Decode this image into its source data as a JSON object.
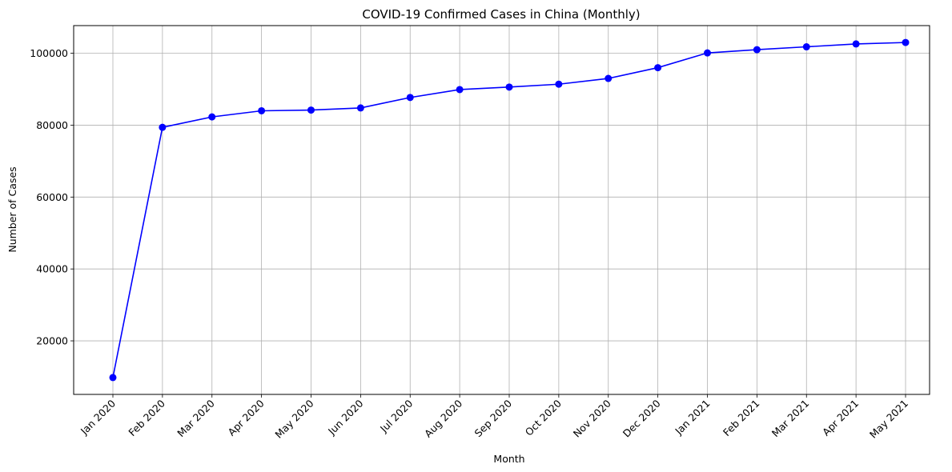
{
  "chart_data": {
    "type": "line",
    "title": "COVID-19 Confirmed Cases in China (Monthly)",
    "xlabel": "Month",
    "ylabel": "Number of Cases",
    "categories": [
      "Jan 2020",
      "Feb 2020",
      "Mar 2020",
      "Apr 2020",
      "May 2020",
      "Jun 2020",
      "Jul 2020",
      "Aug 2020",
      "Sep 2020",
      "Oct 2020",
      "Nov 2020",
      "Dec 2020",
      "Jan 2021",
      "Feb 2021",
      "Mar 2021",
      "Apr 2021",
      "May 2021"
    ],
    "series": [
      {
        "values": [
          9800,
          79400,
          82300,
          84000,
          84200,
          84800,
          87700,
          89900,
          90600,
          91400,
          93000,
          96000,
          100100,
          101000,
          101800,
          102600,
          103000
        ],
        "color": "#0000ff",
        "marker": "circle"
      }
    ],
    "yticks": [
      20000,
      40000,
      60000,
      80000,
      100000
    ],
    "ylim": [
      5100,
      107700
    ],
    "grid": true,
    "x_tick_rotation": 45
  }
}
